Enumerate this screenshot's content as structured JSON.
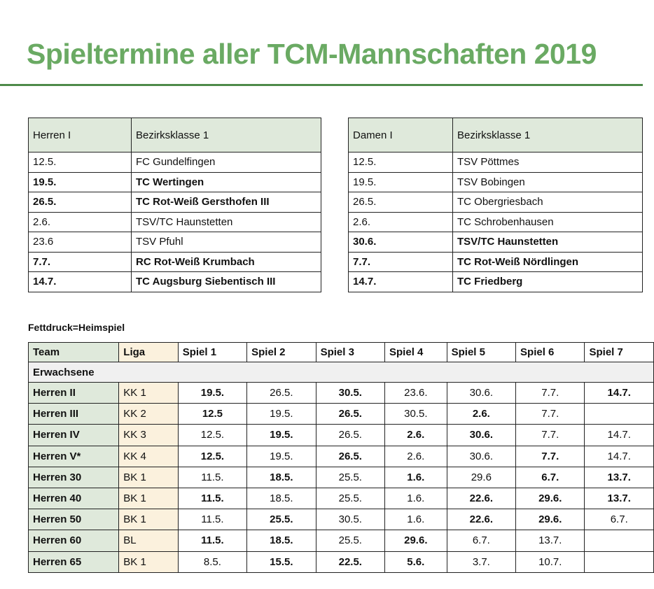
{
  "title": "Spieltermine aller TCM-Mannschaften 2019",
  "herren1": {
    "team": "Herren I",
    "league": "Bezirksklasse 1",
    "rows": [
      {
        "date": "12.5.",
        "opponent": "FC Gundelfingen",
        "home": false
      },
      {
        "date": "19.5.",
        "opponent": "TC Wertingen",
        "home": true
      },
      {
        "date": "26.5.",
        "opponent": "TC Rot-Weiß Gersthofen III",
        "home": true
      },
      {
        "date": "2.6.",
        "opponent": "TSV/TC Haunstetten",
        "home": false
      },
      {
        "date": "23.6",
        "opponent": "TSV Pfuhl",
        "home": false
      },
      {
        "date": "7.7.",
        "opponent": "RC Rot-Weiß Krumbach",
        "home": true
      },
      {
        "date": "14.7.",
        "opponent": "TC Augsburg Siebentisch III",
        "home": true
      }
    ]
  },
  "damen1": {
    "team": "Damen I",
    "league": "Bezirksklasse 1",
    "rows": [
      {
        "date": "12.5.",
        "opponent": "TSV Pöttmes",
        "home": false
      },
      {
        "date": "19.5.",
        "opponent": "TSV Bobingen",
        "home": false
      },
      {
        "date": "26.5.",
        "opponent": "TC Obergriesbach",
        "home": false
      },
      {
        "date": "2.6.",
        "opponent": "TC Schrobenhausen",
        "home": false
      },
      {
        "date": "30.6.",
        "opponent": "TSV/TC Haunstetten",
        "home": true
      },
      {
        "date": "7.7.",
        "opponent": "TC Rot-Weiß Nördlingen",
        "home": true
      },
      {
        "date": "14.7.",
        "opponent": "TC Friedberg",
        "home": true
      }
    ]
  },
  "legend": "Fettdruck=Heimspiel",
  "schedule": {
    "headers": [
      "Team",
      "Liga",
      "Spiel 1",
      "Spiel 2",
      "Spiel 3",
      "Spiel 4",
      "Spiel 5",
      "Spiel 6",
      "Spiel 7"
    ],
    "section": "Erwachsene",
    "rows": [
      {
        "team": "Herren II",
        "liga": "KK 1",
        "games": [
          {
            "d": "19.5.",
            "h": true
          },
          {
            "d": "26.5.",
            "h": false
          },
          {
            "d": "30.5.",
            "h": true
          },
          {
            "d": "23.6.",
            "h": false
          },
          {
            "d": "30.6.",
            "h": false
          },
          {
            "d": "7.7.",
            "h": false
          },
          {
            "d": "14.7.",
            "h": true
          }
        ]
      },
      {
        "team": "Herren III",
        "liga": "KK 2",
        "games": [
          {
            "d": "12.5",
            "h": true
          },
          {
            "d": "19.5.",
            "h": false
          },
          {
            "d": "26.5.",
            "h": true
          },
          {
            "d": "30.5.",
            "h": false
          },
          {
            "d": "2.6.",
            "h": true
          },
          {
            "d": "7.7.",
            "h": false
          },
          {
            "d": "",
            "h": false
          }
        ]
      },
      {
        "team": "Herren IV",
        "liga": "KK 3",
        "games": [
          {
            "d": "12.5.",
            "h": false
          },
          {
            "d": "19.5.",
            "h": true
          },
          {
            "d": "26.5.",
            "h": false
          },
          {
            "d": "2.6.",
            "h": true
          },
          {
            "d": "30.6.",
            "h": true
          },
          {
            "d": "7.7.",
            "h": false
          },
          {
            "d": "14.7.",
            "h": false
          }
        ]
      },
      {
        "team": "Herren V*",
        "liga": "KK 4",
        "games": [
          {
            "d": "12.5.",
            "h": true
          },
          {
            "d": "19.5.",
            "h": false
          },
          {
            "d": "26.5.",
            "h": true
          },
          {
            "d": "2.6.",
            "h": false
          },
          {
            "d": "30.6.",
            "h": false
          },
          {
            "d": "7.7.",
            "h": true
          },
          {
            "d": "14.7.",
            "h": false
          }
        ]
      },
      {
        "team": "Herren 30",
        "liga": "BK 1",
        "games": [
          {
            "d": "11.5.",
            "h": false
          },
          {
            "d": "18.5.",
            "h": true
          },
          {
            "d": "25.5.",
            "h": false
          },
          {
            "d": "1.6.",
            "h": true
          },
          {
            "d": "29.6",
            "h": false
          },
          {
            "d": "6.7.",
            "h": true
          },
          {
            "d": "13.7.",
            "h": true
          }
        ]
      },
      {
        "team": "Herren 40",
        "liga": "BK 1",
        "games": [
          {
            "d": "11.5.",
            "h": true
          },
          {
            "d": "18.5.",
            "h": false
          },
          {
            "d": "25.5.",
            "h": false
          },
          {
            "d": "1.6.",
            "h": false
          },
          {
            "d": "22.6.",
            "h": true
          },
          {
            "d": "29.6.",
            "h": true
          },
          {
            "d": "13.7.",
            "h": true
          }
        ]
      },
      {
        "team": "Herren 50",
        "liga": "BK 1",
        "games": [
          {
            "d": "11.5.",
            "h": false
          },
          {
            "d": "25.5.",
            "h": true
          },
          {
            "d": "30.5.",
            "h": false
          },
          {
            "d": "1.6.",
            "h": false
          },
          {
            "d": "22.6.",
            "h": true
          },
          {
            "d": "29.6.",
            "h": true
          },
          {
            "d": "6.7.",
            "h": false
          }
        ]
      },
      {
        "team": "Herren 60",
        "liga": "BL",
        "games": [
          {
            "d": "11.5.",
            "h": true
          },
          {
            "d": "18.5.",
            "h": true
          },
          {
            "d": "25.5.",
            "h": false
          },
          {
            "d": "29.6.",
            "h": true
          },
          {
            "d": "6.7.",
            "h": false
          },
          {
            "d": "13.7.",
            "h": false
          },
          {
            "d": "",
            "h": false
          }
        ]
      },
      {
        "team": "Herren 65",
        "liga": "BK 1",
        "games": [
          {
            "d": "8.5.",
            "h": false
          },
          {
            "d": "15.5.",
            "h": true
          },
          {
            "d": "22.5.",
            "h": true
          },
          {
            "d": "5.6.",
            "h": true
          },
          {
            "d": "3.7.",
            "h": false
          },
          {
            "d": "10.7.",
            "h": false
          },
          {
            "d": "",
            "h": false
          }
        ]
      }
    ]
  }
}
